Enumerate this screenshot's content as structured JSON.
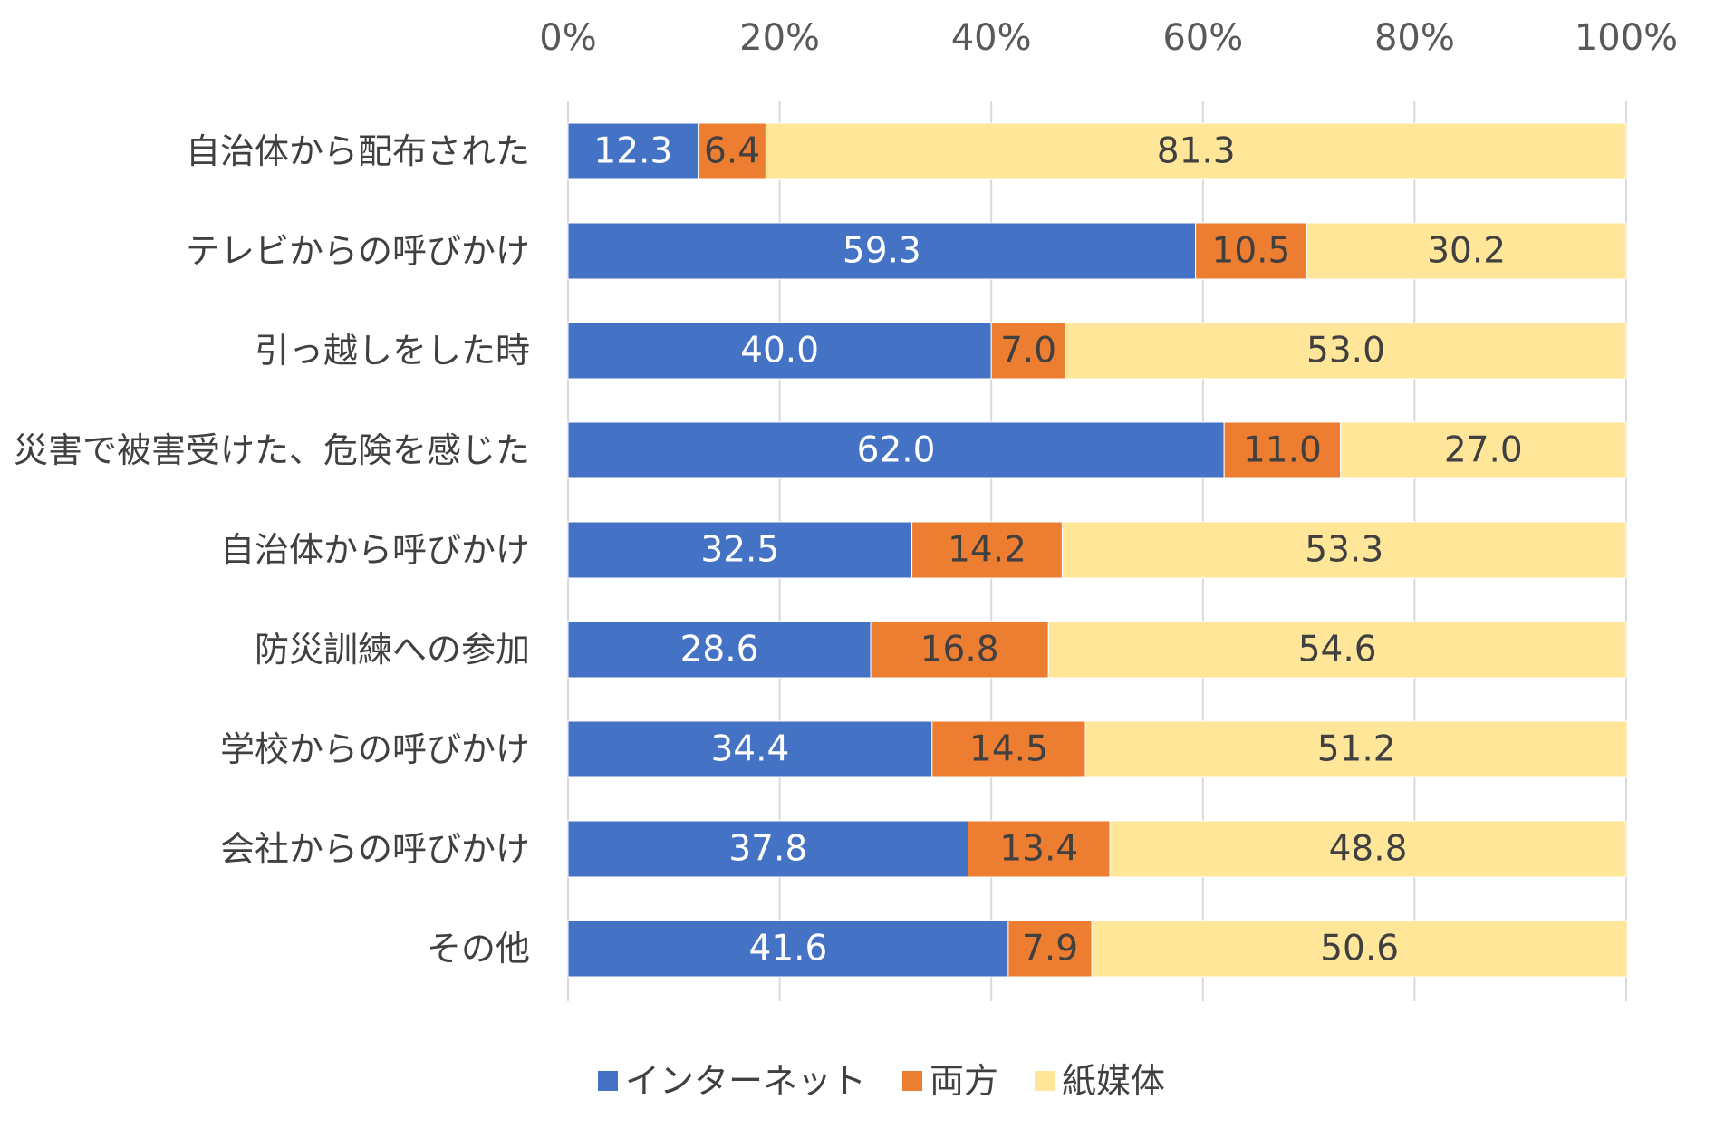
{
  "chart_data": {
    "type": "bar",
    "orientation": "horizontal",
    "stacked": "percent",
    "title": "",
    "xlabel": "",
    "ylabel": "",
    "xlim": [
      0,
      100
    ],
    "x_ticks": [
      "0%",
      "20%",
      "40%",
      "60%",
      "80%",
      "100%"
    ],
    "x_tick_values": [
      0,
      20,
      40,
      60,
      80,
      100
    ],
    "grid": "vertical",
    "legend_position": "bottom",
    "categories": [
      "自治体から配布された",
      "テレビからの呼びかけ",
      "引っ越しをした時",
      "災害で被害受けた、危険を感じた",
      "自治体から呼びかけ",
      "防災訓練への参加",
      "学校からの呼びかけ",
      "会社からの呼びかけ",
      "その他"
    ],
    "series": [
      {
        "name": "インターネット",
        "color": "#4472C4",
        "label_color": "#FFFFFF",
        "values": [
          12.3,
          59.3,
          40.0,
          62.0,
          32.5,
          28.6,
          34.4,
          37.8,
          41.6
        ],
        "labels": [
          "12.3",
          "59.3",
          "40.0",
          "62.0",
          "32.5",
          "28.6",
          "34.4",
          "37.8",
          "41.6"
        ]
      },
      {
        "name": "両方",
        "color": "#ED7D31",
        "label_color": "#404040",
        "values": [
          6.4,
          10.5,
          7.0,
          11.0,
          14.2,
          16.8,
          14.5,
          13.4,
          7.9
        ],
        "labels": [
          "6.4",
          "10.5",
          "7.0",
          "11.0",
          "14.2",
          "16.8",
          "14.5",
          "13.4",
          "7.9"
        ]
      },
      {
        "name": "紙媒体",
        "color": "#FFE699",
        "label_color": "#404040",
        "values": [
          81.3,
          30.2,
          53.0,
          27.0,
          53.3,
          54.6,
          51.2,
          48.8,
          50.6
        ],
        "labels": [
          "81.3",
          "30.2",
          "53.0",
          "27.0",
          "53.3",
          "54.6",
          "51.2",
          "48.8",
          "50.6"
        ]
      }
    ],
    "colors": {
      "grid": "#D9D9D9",
      "tick_text": "#595959",
      "category_text": "#404040"
    }
  }
}
